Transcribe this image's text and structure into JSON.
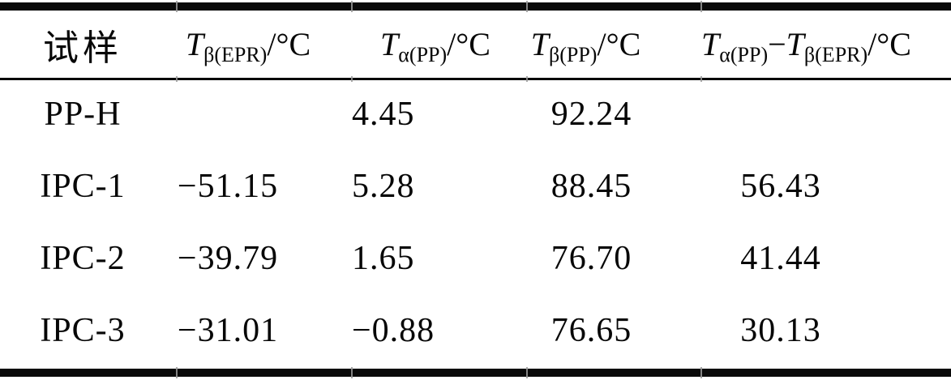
{
  "table": {
    "columns": [
      {
        "label": "试样"
      },
      {
        "sym": "T",
        "sub": "β(EPR)",
        "unit": "/°C"
      },
      {
        "sym": "T",
        "sub": "α(PP)",
        "unit": "/°C"
      },
      {
        "sym": "T",
        "sub": "β(PP)",
        "unit": "/°C"
      },
      {
        "sym": "T",
        "sub": "α(PP)",
        "minus": "−",
        "sym2": "T",
        "sub2": "β(EPR)",
        "unit": "/°C"
      }
    ],
    "rows": [
      {
        "sample": "PP-H",
        "t_beta_epr": "",
        "t_alpha_pp": "4.45",
        "t_beta_pp": "92.24",
        "t_diff": ""
      },
      {
        "sample": "IPC-1",
        "t_beta_epr": "−51.15",
        "t_alpha_pp": "5.28",
        "t_beta_pp": "88.45",
        "t_diff": "56.43"
      },
      {
        "sample": "IPC-2",
        "t_beta_epr": "−39.79",
        "t_alpha_pp": "1.65",
        "t_beta_pp": "76.70",
        "t_diff": "41.44"
      },
      {
        "sample": "IPC-3",
        "t_beta_epr": "−31.01",
        "t_alpha_pp": "−0.88",
        "t_beta_pp": "76.65",
        "t_diff": "30.13"
      }
    ]
  },
  "colors": {
    "rule": "#0a0a0a",
    "text": "#070707",
    "background": "#ffffff"
  }
}
